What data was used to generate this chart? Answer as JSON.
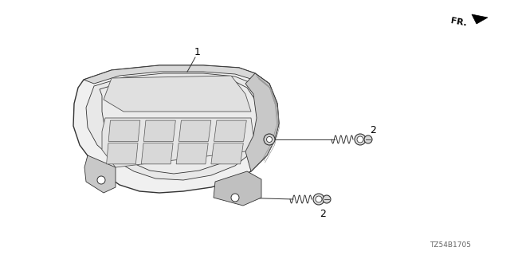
{
  "background_color": "#ffffff",
  "part_number_text": "TZ54B1705",
  "line_color": "#333333",
  "screw_color": "#444444",
  "label_color": "#000000",
  "fr_text": "FR.",
  "label1": "1",
  "label2": "2"
}
